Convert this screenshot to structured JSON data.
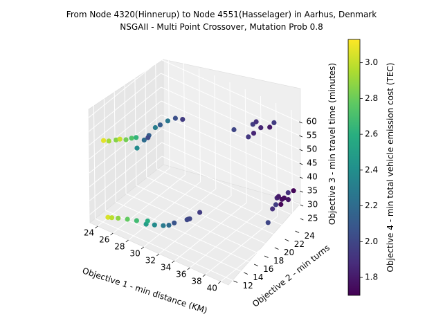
{
  "chart_data": {
    "type": "scatter",
    "projection": "3d",
    "title": "From Node 4320(Hinnerup) to Node 4551(Hasselager) in Aarhus, Denmark",
    "subtitle": "NSGAII - Multi Point Crossover, Mutation Prob 0.8",
    "xlabel": "Objective 1 - min distance (KM)",
    "ylabel": "Objective 2 - min turns",
    "zlabel": "Objective 3 - min travel time (minutes)",
    "colorbar_label": "Objective 4 - min total vehicle emission cost (TEC)",
    "x_ticks": [
      "24",
      "26",
      "28",
      "30",
      "32",
      "34",
      "36",
      "38",
      "40"
    ],
    "y_ticks": [
      "12",
      "14",
      "16",
      "18",
      "20",
      "22",
      "24"
    ],
    "z_ticks": [
      "25",
      "30",
      "35",
      "40",
      "45",
      "50",
      "55",
      "60"
    ],
    "colorbar_ticks": [
      "1.8",
      "2.0",
      "2.2",
      "2.4",
      "2.6",
      "2.8",
      "3.0"
    ],
    "xlim": [
      23,
      41
    ],
    "ylim": [
      11,
      25
    ],
    "zlim": [
      22,
      63
    ],
    "clim": [
      1.7,
      3.13
    ],
    "colormap": "viridis",
    "grid": true,
    "points": [
      {
        "x": 24.0,
        "y": 13.0,
        "z": 22.2,
        "c": 3.05
      },
      {
        "x": 24.5,
        "y": 13.0,
        "z": 22.7,
        "c": 2.98
      },
      {
        "x": 25.2,
        "y": 13.2,
        "z": 23.1,
        "c": 2.88
      },
      {
        "x": 26.2,
        "y": 13.5,
        "z": 23.5,
        "c": 2.78
      },
      {
        "x": 27.2,
        "y": 13.8,
        "z": 23.8,
        "c": 2.68
      },
      {
        "x": 28.3,
        "y": 14.0,
        "z": 23.6,
        "c": 2.48
      },
      {
        "x": 28.3,
        "y": 14.3,
        "z": 24.3,
        "c": 2.58
      },
      {
        "x": 29.2,
        "y": 14.3,
        "z": 24.0,
        "c": 2.38
      },
      {
        "x": 30.2,
        "y": 14.5,
        "z": 24.7,
        "c": 2.28
      },
      {
        "x": 30.8,
        "y": 14.7,
        "z": 25.3,
        "c": 2.2
      },
      {
        "x": 31.3,
        "y": 15.0,
        "z": 26.3,
        "c": 2.07
      },
      {
        "x": 32.3,
        "y": 16.0,
        "z": 27.2,
        "c": 2.02
      },
      {
        "x": 32.3,
        "y": 16.5,
        "z": 26.8,
        "c": 2.0
      },
      {
        "x": 33.3,
        "y": 17.0,
        "z": 29.6,
        "c": 1.95
      },
      {
        "x": 31.8,
        "y": 17.0,
        "z": 25.3,
        "c": 2.0
      },
      {
        "x": 23.0,
        "y": 13.8,
        "z": 47.5,
        "c": 3.07
      },
      {
        "x": 23.7,
        "y": 13.8,
        "z": 48.2,
        "c": 2.93
      },
      {
        "x": 24.5,
        "y": 14.0,
        "z": 49.3,
        "c": 2.86
      },
      {
        "x": 24.8,
        "y": 14.3,
        "z": 49.5,
        "c": 3.01
      },
      {
        "x": 25.6,
        "y": 14.3,
        "z": 50.3,
        "c": 2.82
      },
      {
        "x": 26.2,
        "y": 14.5,
        "z": 51.3,
        "c": 2.73
      },
      {
        "x": 26.8,
        "y": 14.5,
        "z": 52.3,
        "c": 2.63
      },
      {
        "x": 27.1,
        "y": 14.2,
        "z": 49.3,
        "c": 2.38
      },
      {
        "x": 27.5,
        "y": 15.0,
        "z": 51.5,
        "c": 2.2
      },
      {
        "x": 28.0,
        "y": 15.2,
        "z": 53.5,
        "c": 2.13
      },
      {
        "x": 28.0,
        "y": 15.0,
        "z": 53.0,
        "c": 2.02
      },
      {
        "x": 28.3,
        "y": 16.0,
        "z": 55.5,
        "c": 2.3
      },
      {
        "x": 28.8,
        "y": 16.2,
        "z": 56.8,
        "c": 2.12
      },
      {
        "x": 29.8,
        "y": 16.2,
        "z": 59.5,
        "c": 2.27
      },
      {
        "x": 30.6,
        "y": 16.5,
        "z": 61.0,
        "c": 2.05
      },
      {
        "x": 31.2,
        "y": 17.0,
        "z": 60.6,
        "c": 1.95
      },
      {
        "x": 34.5,
        "y": 22.0,
        "z": 53.5,
        "c": 2.0
      },
      {
        "x": 36.1,
        "y": 23.3,
        "z": 55.5,
        "c": 1.95
      },
      {
        "x": 36.4,
        "y": 23.5,
        "z": 56.5,
        "c": 1.9
      },
      {
        "x": 36.6,
        "y": 22.7,
        "z": 53.8,
        "c": 1.85
      },
      {
        "x": 36.1,
        "y": 22.4,
        "z": 52.3,
        "c": 1.93
      },
      {
        "x": 37.2,
        "y": 23.2,
        "z": 55.8,
        "c": 1.85
      },
      {
        "x": 38.3,
        "y": 23.3,
        "z": 57.2,
        "c": 1.8
      },
      {
        "x": 38.6,
        "y": 23.7,
        "z": 58.6,
        "c": 1.95
      },
      {
        "x": 38.0,
        "y": 23.2,
        "z": 22.5,
        "c": 2.0
      },
      {
        "x": 38.4,
        "y": 23.5,
        "z": 27.5,
        "c": 1.9
      },
      {
        "x": 38.5,
        "y": 24.0,
        "z": 28.4,
        "c": 1.95
      },
      {
        "x": 38.8,
        "y": 23.8,
        "z": 31.5,
        "c": 1.85
      },
      {
        "x": 39.0,
        "y": 23.8,
        "z": 32.3,
        "c": 1.8
      },
      {
        "x": 39.3,
        "y": 24.0,
        "z": 31.3,
        "c": 1.75
      },
      {
        "x": 39.3,
        "y": 23.8,
        "z": 29.8,
        "c": 1.72
      },
      {
        "x": 39.6,
        "y": 24.0,
        "z": 32.2,
        "c": 1.75
      },
      {
        "x": 40.0,
        "y": 24.2,
        "z": 34.3,
        "c": 1.9
      },
      {
        "x": 40.5,
        "y": 24.5,
        "z": 35.2,
        "c": 1.72
      },
      {
        "x": 40.0,
        "y": 24.2,
        "z": 31.8,
        "c": 1.78
      }
    ]
  }
}
